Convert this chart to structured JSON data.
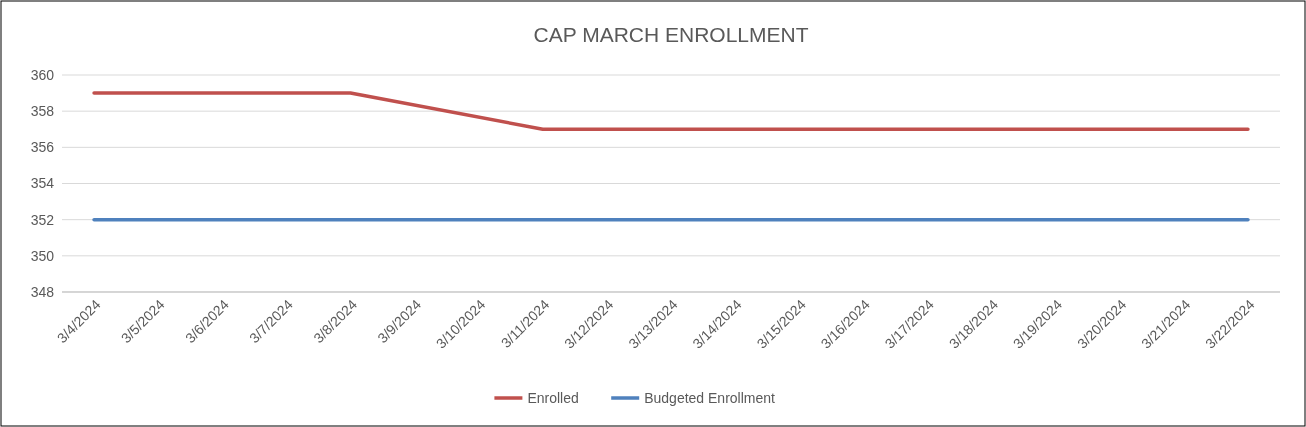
{
  "chart_data": {
    "type": "line",
    "title": "CAP MARCH ENROLLMENT",
    "x": [
      "2024-03-04",
      "2024-03-05",
      "2024-03-06",
      "2024-03-07",
      "2024-03-08",
      "2024-03-11",
      "2024-03-12",
      "2024-03-13",
      "2024-03-14",
      "2024-03-15",
      "2024-03-18",
      "2024-03-19",
      "2024-03-20",
      "2024-03-21",
      "2024-03-22"
    ],
    "series": [
      {
        "name": "Enrolled",
        "color": "#c0504d",
        "values": [
          359,
          359,
          359,
          359,
          359,
          357,
          357,
          357,
          357,
          357,
          357,
          357,
          357,
          357,
          357
        ]
      },
      {
        "name": "Budgeted Enrollment",
        "color": "#4f81bd",
        "values": [
          352,
          352,
          352,
          352,
          352,
          352,
          352,
          352,
          352,
          352,
          352,
          352,
          352,
          352,
          352
        ]
      }
    ],
    "xlim": [
      "2024-03-03T12:00",
      "2024-03-22T12:00"
    ],
    "xticks": [
      {
        "value": "2024-03-04",
        "label": "3/4/2024"
      },
      {
        "value": "2024-03-05",
        "label": "3/5/2024"
      },
      {
        "value": "2024-03-06",
        "label": "3/6/2024"
      },
      {
        "value": "2024-03-07",
        "label": "3/7/2024"
      },
      {
        "value": "2024-03-08",
        "label": "3/8/2024"
      },
      {
        "value": "2024-03-09",
        "label": "3/9/2024"
      },
      {
        "value": "2024-03-10",
        "label": "3/10/2024"
      },
      {
        "value": "2024-03-11",
        "label": "3/11/2024"
      },
      {
        "value": "2024-03-12",
        "label": "3/12/2024"
      },
      {
        "value": "2024-03-13",
        "label": "3/13/2024"
      },
      {
        "value": "2024-03-14",
        "label": "3/14/2024"
      },
      {
        "value": "2024-03-15",
        "label": "3/15/2024"
      },
      {
        "value": "2024-03-16",
        "label": "3/16/2024"
      },
      {
        "value": "2024-03-17",
        "label": "3/17/2024"
      },
      {
        "value": "2024-03-18",
        "label": "3/18/2024"
      },
      {
        "value": "2024-03-19",
        "label": "3/19/2024"
      },
      {
        "value": "2024-03-20",
        "label": "3/20/2024"
      },
      {
        "value": "2024-03-21",
        "label": "3/21/2024"
      },
      {
        "value": "2024-03-22",
        "label": "3/22/2024"
      }
    ],
    "ylim": [
      348,
      360
    ],
    "yticks": [
      348,
      350,
      352,
      354,
      356,
      358,
      360
    ],
    "grid": "y",
    "legend": "bottom",
    "marker": "none",
    "line_style": "solid"
  }
}
